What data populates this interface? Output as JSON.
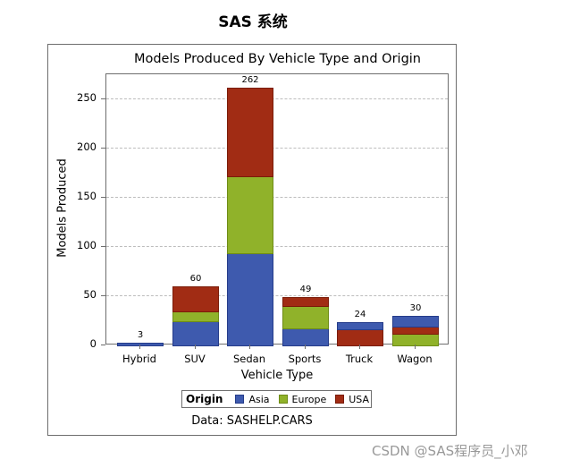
{
  "page": {
    "title": "SAS 系统",
    "watermark": "CSDN @SAS程序员_小邓"
  },
  "chart_data": {
    "type": "bar",
    "stacked": true,
    "title": "Models Produced By Vehicle Type and Origin",
    "xlabel": "Vehicle Type",
    "ylabel": "Models Produced",
    "categories": [
      "Hybrid",
      "SUV",
      "Sedan",
      "Sports",
      "Truck",
      "Wagon"
    ],
    "series": [
      {
        "name": "Asia",
        "color": "#3e5aae",
        "values": [
          3,
          25,
          94,
          17,
          8,
          11
        ]
      },
      {
        "name": "Europe",
        "color": "#90b22a",
        "values": [
          0,
          10,
          78,
          23,
          0,
          12
        ]
      },
      {
        "name": "USA",
        "color": "#a12c14",
        "values": [
          0,
          25,
          90,
          9,
          16,
          7
        ]
      }
    ],
    "totals": [
      3,
      60,
      262,
      49,
      24,
      30
    ],
    "yticks": [
      0,
      50,
      100,
      150,
      200,
      250
    ],
    "ylim": [
      0,
      275
    ],
    "grid": true,
    "legend": {
      "title": "Origin",
      "position": "bottom",
      "entries": [
        "Asia",
        "Europe",
        "USA"
      ]
    },
    "footnote": "Data: SASHELP.CARS"
  }
}
